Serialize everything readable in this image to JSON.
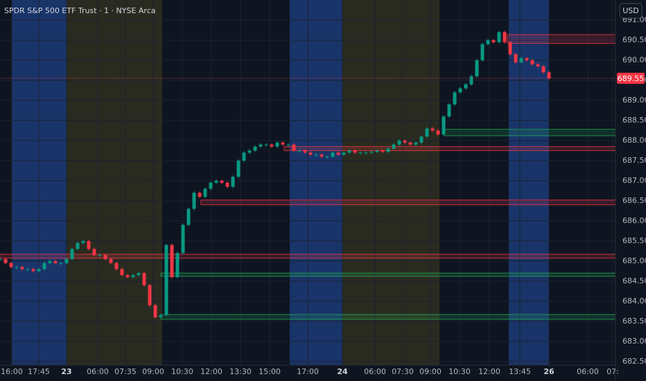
{
  "chart_data": {
    "type": "candlestick",
    "title": "SPDR S&P 500 ETF Trust · 1 · NYSE Arca",
    "currency": "USD",
    "x_labels": [
      "16:00",
      "17:45",
      "23",
      "06:00",
      "07:35",
      "09:00",
      "10:30",
      "12:00",
      "13:30",
      "15:00",
      "17:00",
      "24",
      "06:00",
      "07:30",
      "09:00",
      "10:30",
      "12:00",
      "13:45",
      "26",
      "06:00",
      "07:"
    ],
    "series": [
      {
        "up_color": "#089981",
        "down_color": "#f23645",
        "values": [
          685.05,
          684.95,
          684.85,
          684.85,
          684.8,
          684.8,
          684.75,
          684.8,
          684.95,
          685.0,
          684.95,
          684.95,
          685.05,
          685.3,
          685.45,
          685.5,
          685.3,
          685.15,
          685.15,
          685.05,
          684.95,
          684.8,
          684.65,
          684.6,
          684.65,
          684.7,
          684.4,
          683.9,
          683.6,
          683.65,
          685.4,
          684.6,
          685.2,
          685.9,
          686.3,
          686.7,
          686.6,
          686.8,
          686.95,
          687.0,
          686.95,
          686.85,
          687.1,
          687.5,
          687.7,
          687.75,
          687.85,
          687.9,
          687.9,
          687.85,
          687.95,
          687.9,
          687.9,
          687.75,
          687.75,
          687.7,
          687.65,
          687.65,
          687.6,
          687.6,
          687.7,
          687.65,
          687.7,
          687.75,
          687.7,
          687.7,
          687.7,
          687.72,
          687.75,
          687.72,
          687.8,
          687.9,
          688.0,
          687.95,
          687.9,
          687.95,
          688.1,
          688.3,
          688.25,
          688.15,
          688.6,
          688.9,
          689.2,
          689.3,
          689.4,
          689.6,
          690.0,
          690.4,
          690.5,
          690.45,
          690.7,
          690.45,
          690.15,
          689.95,
          690.05,
          690.0,
          689.9,
          689.85,
          689.7,
          689.55
        ]
      }
    ],
    "last_price": 689.55,
    "zones": [
      {
        "low": 690.42,
        "high": 690.64,
        "color": "#f23645"
      },
      {
        "low": 688.12,
        "high": 688.28,
        "color": "#22ab55"
      },
      {
        "low": 687.75,
        "high": 687.85,
        "color": "#f23645"
      },
      {
        "low": 686.4,
        "high": 686.52,
        "color": "#f23645"
      },
      {
        "low": 685.07,
        "high": 685.17,
        "color": "#f23645"
      },
      {
        "low": 684.62,
        "high": 684.7,
        "color": "#22ab55"
      },
      {
        "low": 683.55,
        "high": 683.67,
        "color": "#22ab55"
      }
    ],
    "ylim": [
      682.41,
      691.5
    ],
    "yticks": [
      {
        "value": 682.5,
        "label": "682.50"
      },
      {
        "value": 683,
        "label": "683.00"
      },
      {
        "value": 683.5,
        "label": "683.50"
      },
      {
        "value": 684,
        "label": "684.00"
      },
      {
        "value": 684.5,
        "label": "684.50"
      },
      {
        "value": 685,
        "label": "685.00"
      },
      {
        "value": 685.5,
        "label": "685.50"
      },
      {
        "value": 686,
        "label": "686.00"
      },
      {
        "value": 686.5,
        "label": "686.50"
      },
      {
        "value": 687,
        "label": "687.00"
      },
      {
        "value": 687.5,
        "label": "687.50"
      },
      {
        "value": 688,
        "label": "688.00"
      },
      {
        "value": 688.5,
        "label": "688.50"
      },
      {
        "value": 689,
        "label": "689.00"
      },
      {
        "value": 689.5,
        "label": "689.50"
      },
      {
        "value": 690,
        "label": "690.00"
      },
      {
        "value": 690.5,
        "label": "690.50"
      },
      {
        "value": 691,
        "label": "691.00"
      }
    ],
    "grid": true
  }
}
